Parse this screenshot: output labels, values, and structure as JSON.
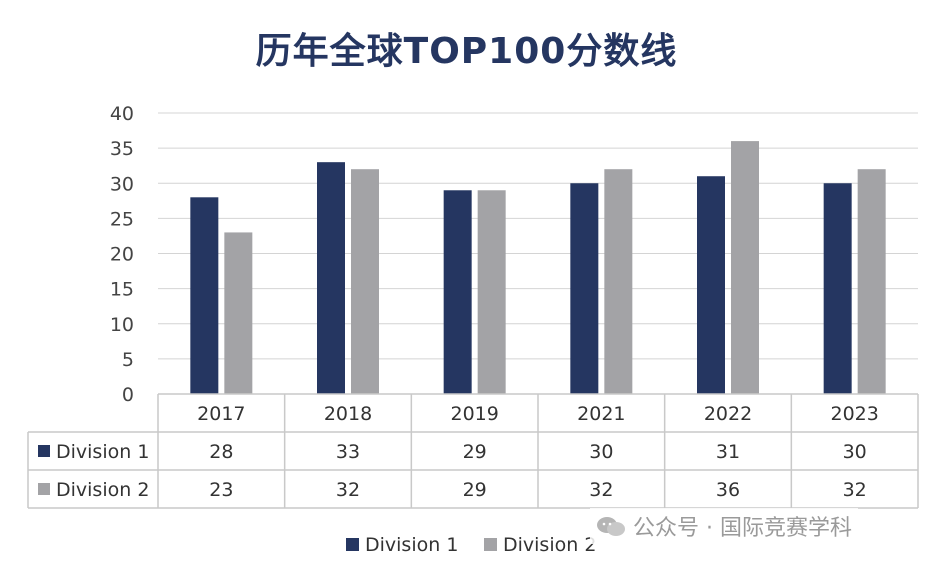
{
  "chart_data": {
    "type": "bar",
    "title": "历年全球TOP100分数线",
    "categories": [
      "2017",
      "2018",
      "2019",
      "2021",
      "2022",
      "2023"
    ],
    "series": [
      {
        "name": "Division 1",
        "values": [
          28,
          33,
          29,
          30,
          31,
          30
        ],
        "color": "#253661"
      },
      {
        "name": "Division 2",
        "values": [
          23,
          32,
          29,
          32,
          36,
          32
        ],
        "color": "#a3a3a6"
      }
    ],
    "ylim": [
      0,
      40
    ],
    "yticks": [
      0,
      5,
      10,
      15,
      20,
      25,
      30,
      35,
      40
    ],
    "grid": true,
    "legend": "bottom-center",
    "data_table": true
  },
  "watermark": {
    "icon": "wechat-icon",
    "text": "公众号 · 国际竞赛学科"
  }
}
